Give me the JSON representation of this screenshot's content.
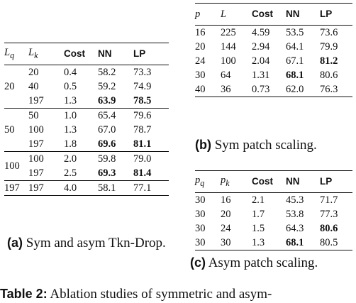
{
  "table_a": {
    "headers": {
      "lq": "L",
      "lq_sub": "q",
      "lk": "L",
      "lk_sub": "k",
      "cost": "Cost",
      "nn": "NN",
      "lp": "LP"
    },
    "groups": [
      {
        "lq": "20",
        "rows": [
          {
            "lk": "20",
            "cost": "0.4",
            "nn": "58.2",
            "lp": "73.3"
          },
          {
            "lk": "40",
            "cost": "0.5",
            "nn": "59.2",
            "lp": "74.9"
          },
          {
            "lk": "197",
            "cost": "1.3",
            "nn": "63.9",
            "lp": "78.5"
          }
        ]
      },
      {
        "lq": "50",
        "rows": [
          {
            "lk": "50",
            "cost": "1.0",
            "nn": "65.4",
            "lp": "79.6"
          },
          {
            "lk": "100",
            "cost": "1.3",
            "nn": "67.0",
            "lp": "78.7"
          },
          {
            "lk": "197",
            "cost": "1.8",
            "nn": "69.6",
            "lp": "81.1"
          }
        ]
      },
      {
        "lq": "100",
        "rows": [
          {
            "lk": "100",
            "cost": "2.0",
            "nn": "59.8",
            "lp": "79.0"
          },
          {
            "lk": "197",
            "cost": "2.5",
            "nn": "69.3",
            "lp": "81.4"
          }
        ]
      },
      {
        "lq": "197",
        "rows": [
          {
            "lk": "197",
            "cost": "4.0",
            "nn": "58.1",
            "lp": "77.1"
          }
        ]
      }
    ],
    "caption_label": "(a)",
    "caption_text": "Sym and asym Tkn-Drop."
  },
  "table_b": {
    "headers": {
      "p": "p",
      "l": "L",
      "cost": "Cost",
      "nn": "NN",
      "lp": "LP"
    },
    "rows": [
      {
        "p": "16",
        "l": "225",
        "cost": "4.59",
        "nn": "53.5",
        "lp": "73.6"
      },
      {
        "p": "20",
        "l": "144",
        "cost": "2.94",
        "nn": "64.1",
        "lp": "79.9"
      },
      {
        "p": "24",
        "l": "100",
        "cost": "2.04",
        "nn": "67.1",
        "lp": "81.2"
      },
      {
        "p": "30",
        "l": "64",
        "cost": "1.31",
        "nn": "68.1",
        "lp": "80.6"
      },
      {
        "p": "40",
        "l": "36",
        "cost": "0.73",
        "nn": "62.0",
        "lp": "76.3"
      }
    ],
    "caption_label": "(b)",
    "caption_text": "Sym patch scaling."
  },
  "table_c": {
    "headers": {
      "pq": "p",
      "pq_sub": "q",
      "pk": "p",
      "pk_sub": "k",
      "cost": "Cost",
      "nn": "NN",
      "lp": "LP"
    },
    "rows": [
      {
        "pq": "30",
        "pk": "16",
        "cost": "2.1",
        "nn": "45.3",
        "lp": "71.7"
      },
      {
        "pq": "30",
        "pk": "20",
        "cost": "1.7",
        "nn": "53.8",
        "lp": "77.3"
      },
      {
        "pq": "30",
        "pk": "24",
        "cost": "1.5",
        "nn": "64.3",
        "lp": "80.6"
      },
      {
        "pq": "30",
        "pk": "30",
        "cost": "1.3",
        "nn": "68.1",
        "lp": "80.5"
      }
    ],
    "caption_label": "(c)",
    "caption_text": "Asym patch scaling."
  },
  "main_caption": {
    "label": "Table 2:",
    "text": "Ablation studies of symmetric and asym-"
  }
}
